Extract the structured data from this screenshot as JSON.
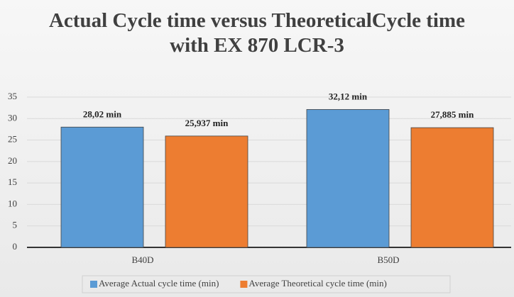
{
  "chart_data": {
    "type": "bar",
    "title": "Actual Cycle time versus TheoreticalCycle time with EX 870 LCR-3",
    "categories": [
      "B40D",
      "B50D"
    ],
    "series": [
      {
        "name": "Average Actual cycle time (min)",
        "color": "#5b9bd5",
        "values": [
          28.02,
          32.12
        ],
        "value_labels": [
          "28,02 min",
          "32,12 min"
        ]
      },
      {
        "name": "Average Theoretical cycle time (min)",
        "color": "#ed7d31",
        "values": [
          25.937,
          27.885
        ],
        "value_labels": [
          "25,937 min",
          "27,885 min"
        ]
      }
    ],
    "ylim": [
      0,
      35
    ],
    "yticks": [
      0,
      5,
      10,
      15,
      20,
      25,
      30,
      35
    ],
    "grid": true,
    "legend": "bottom"
  }
}
